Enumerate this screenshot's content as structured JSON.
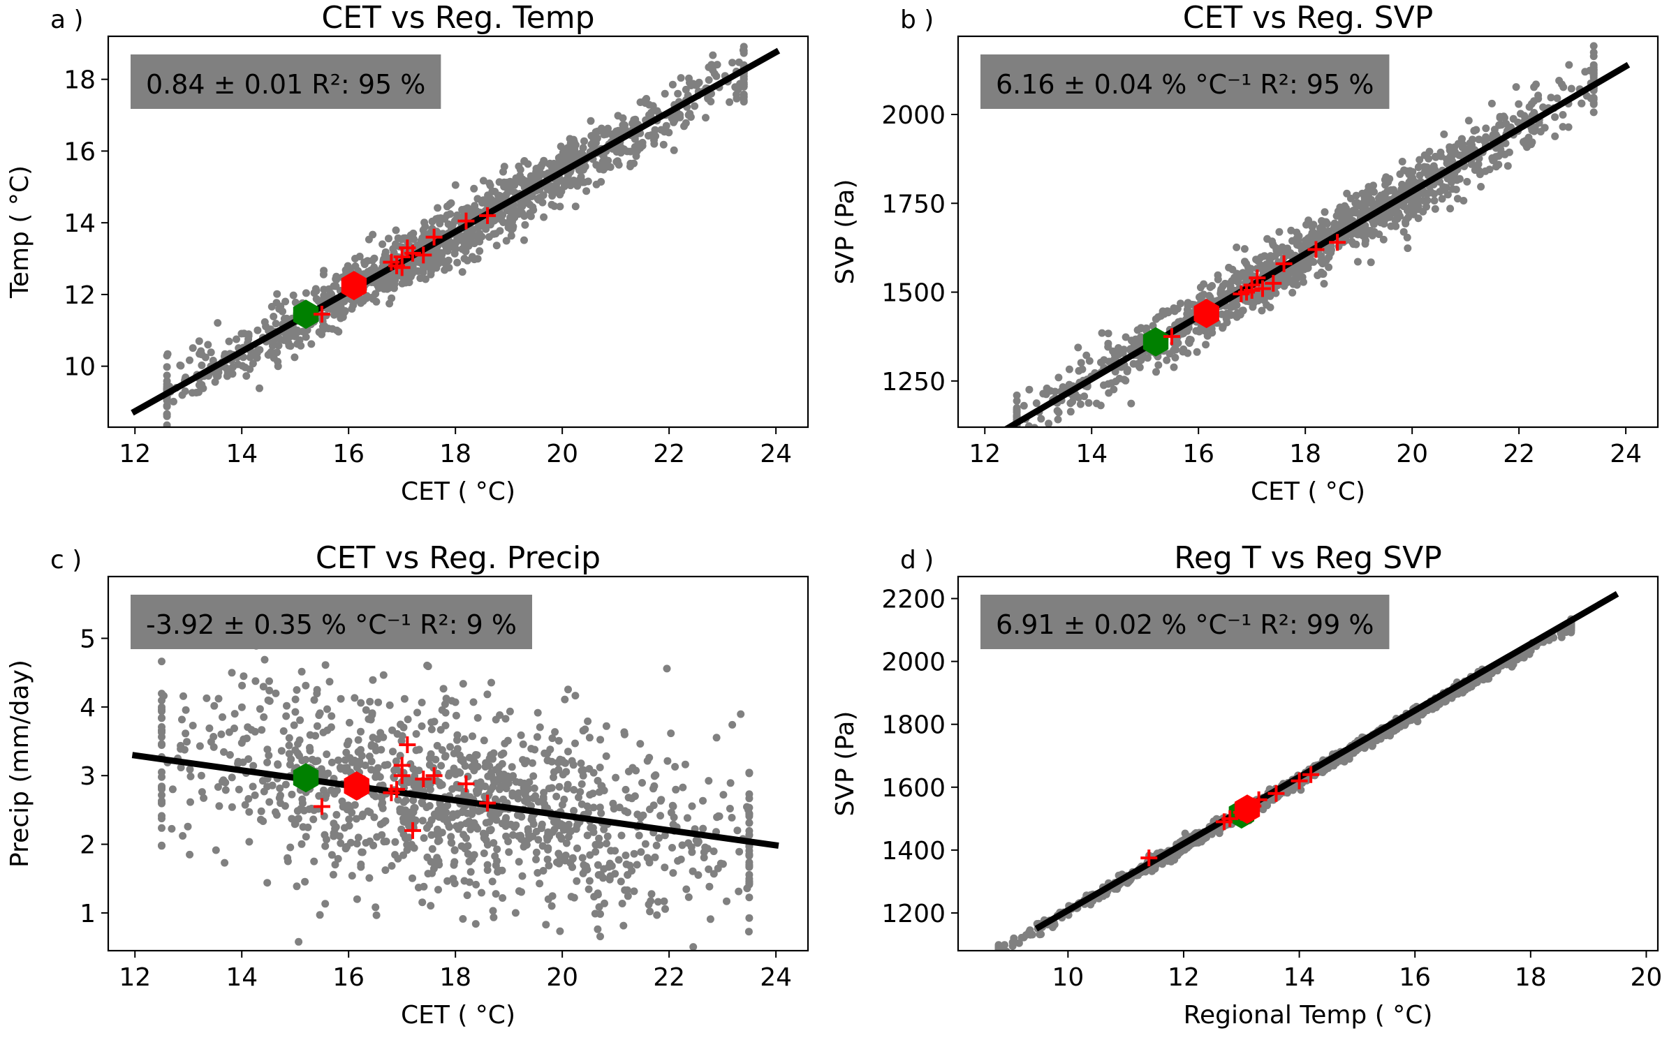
{
  "chart_data": [
    {
      "type": "scatter",
      "panel_label": "a )",
      "title": "CET vs Reg. Temp",
      "xlabel": "CET ( °C)",
      "ylabel": "Temp ( °C)",
      "xlim": [
        11.5,
        24.6
      ],
      "ylim": [
        8.3,
        19.2
      ],
      "xticks": [
        12,
        14,
        16,
        18,
        20,
        22,
        24
      ],
      "yticks": [
        10,
        12,
        14,
        16,
        18
      ],
      "annotation": "0.84 ± 0.01 R²: 95 %",
      "scatter_cloud": {
        "x_range": [
          12.6,
          23.4
        ],
        "fit_slope": 0.84,
        "fit_intercept": -1.4,
        "noise_sd": 0.42,
        "n_points": 1200,
        "color": "#808080"
      },
      "fit_line": {
        "x": [
          11.95,
          24.05
        ],
        "y": [
          8.7,
          18.8
        ],
        "color": "#000000"
      },
      "red_crosses": {
        "x": [
          15.5,
          16.9,
          17.0,
          17.1,
          17.2,
          17.4,
          17.6,
          18.2,
          18.6,
          17.0,
          16.8
        ],
        "y": [
          11.45,
          12.8,
          13.05,
          13.3,
          13.15,
          13.1,
          13.6,
          14.05,
          14.2,
          12.75,
          12.9
        ],
        "color": "#ff0000"
      },
      "red_hexagon": {
        "x": 16.1,
        "y": 12.25,
        "color": "#ff0000"
      },
      "green_hexagon": {
        "x": 15.2,
        "y": 11.45,
        "color": "#008000"
      }
    },
    {
      "type": "scatter",
      "panel_label": "b )",
      "title": "CET vs Reg. SVP",
      "xlabel": "CET ( °C)",
      "ylabel": "SVP (Pa)",
      "xlim": [
        11.5,
        24.6
      ],
      "ylim": [
        1120,
        2220
      ],
      "xticks": [
        12,
        14,
        16,
        18,
        20,
        22,
        24
      ],
      "yticks": [
        1250,
        1500,
        1750,
        2000
      ],
      "annotation": "6.16 ± 0.04 % °C⁻¹ R²: 95 %",
      "scatter_cloud": {
        "x_range": [
          12.6,
          23.4
        ],
        "fit_slope": 88.5,
        "fit_intercept": 15,
        "noise_sd": 42,
        "n_points": 1200,
        "color": "#808080"
      },
      "fit_line": {
        "x": [
          11.95,
          24.05
        ],
        "y": [
          1075,
          2140
        ],
        "color": "#000000"
      },
      "red_crosses": {
        "x": [
          15.5,
          16.9,
          17.0,
          17.1,
          17.2,
          17.4,
          17.6,
          18.2,
          18.6,
          17.0,
          16.8
        ],
        "y": [
          1375,
          1500,
          1520,
          1540,
          1510,
          1525,
          1580,
          1620,
          1640,
          1505,
          1495
        ],
        "color": "#ff0000"
      },
      "red_hexagon": {
        "x": 16.15,
        "y": 1440,
        "color": "#ff0000"
      },
      "green_hexagon": {
        "x": 15.2,
        "y": 1360,
        "color": "#008000"
      }
    },
    {
      "type": "scatter",
      "panel_label": "c )",
      "title": "CET vs Reg. Precip",
      "xlabel": "CET ( °C)",
      "ylabel": "Precip (mm/day)",
      "xlim": [
        11.5,
        24.6
      ],
      "ylim": [
        0.45,
        5.9
      ],
      "xticks": [
        12,
        14,
        16,
        18,
        20,
        22,
        24
      ],
      "yticks": [
        1,
        2,
        3,
        4,
        5
      ],
      "annotation": "-3.92 ± 0.35 % °C⁻¹ R²:  9 %",
      "scatter_cloud": {
        "x_range": [
          12.5,
          23.5
        ],
        "fit_slope": -0.11,
        "fit_intercept": 4.62,
        "noise_sd": 0.72,
        "n_points": 1200,
        "color": "#808080"
      },
      "fit_line": {
        "x": [
          11.95,
          24.05
        ],
        "y": [
          3.3,
          1.98
        ],
        "color": "#000000"
      },
      "red_crosses": {
        "x": [
          15.5,
          16.9,
          17.0,
          17.1,
          17.2,
          17.4,
          17.6,
          18.2,
          18.6,
          17.0,
          16.8
        ],
        "y": [
          2.55,
          2.8,
          3.15,
          3.45,
          2.2,
          2.95,
          3.0,
          2.88,
          2.6,
          3.0,
          2.75
        ],
        "color": "#ff0000"
      },
      "red_hexagon": {
        "x": 16.15,
        "y": 2.85,
        "color": "#ff0000"
      },
      "green_hexagon": {
        "x": 15.2,
        "y": 2.97,
        "color": "#008000"
      }
    },
    {
      "type": "scatter",
      "panel_label": "d )",
      "title": "Reg T vs Reg SVP",
      "xlabel": "Regional Temp ( °C)",
      "ylabel": "SVP (Pa)",
      "xlim": [
        8.1,
        20.2
      ],
      "ylim": [
        1080,
        2270
      ],
      "xticks": [
        10,
        12,
        14,
        16,
        18,
        20
      ],
      "yticks": [
        1200,
        1400,
        1600,
        1800,
        2000,
        2200
      ],
      "annotation": "6.91 ± 0.02 % °C⁻¹ R²: 99 %",
      "scatter_cloud": {
        "x_range": [
          8.8,
          18.7
        ],
        "fit_slope": 104.5,
        "fit_intercept": 159,
        "noise_sd": 10,
        "n_points": 1200,
        "color": "#808080"
      },
      "fit_line": {
        "x": [
          9.45,
          19.5
        ],
        "y": [
          1150,
          2215
        ],
        "color": "#000000"
      },
      "red_crosses": {
        "x": [
          11.4,
          12.7,
          12.8,
          13.0,
          13.2,
          13.3,
          13.6,
          14.0,
          14.2
        ],
        "y": [
          1375,
          1490,
          1500,
          1520,
          1540,
          1560,
          1580,
          1620,
          1640
        ],
        "color": "#ff0000"
      },
      "red_hexagon": {
        "x": 13.1,
        "y": 1530,
        "color": "#ff0000"
      },
      "green_hexagon": {
        "x": 13.0,
        "y": 1515,
        "color": "#008000"
      }
    }
  ]
}
